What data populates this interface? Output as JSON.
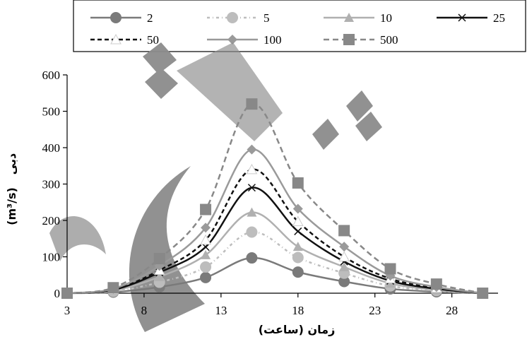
{
  "chart_data": {
    "type": "line",
    "xlabel": "زمان (ساعت)",
    "ylabel_main": "دبی",
    "ylabel_unit": "(m³/s)",
    "xlim": [
      3,
      31
    ],
    "ylim": [
      0,
      600
    ],
    "x_ticks": [
      "3",
      "8",
      "13",
      "18",
      "23",
      "28"
    ],
    "y_ticks": [
      "0",
      "100",
      "200",
      "300",
      "400",
      "500",
      "600"
    ],
    "grid": false,
    "legend_position": "top",
    "x": [
      3,
      6,
      9,
      12,
      15,
      18,
      21,
      24,
      27,
      30
    ],
    "series": [
      {
        "name": "2",
        "color": "#7a7a7a",
        "dash": "",
        "marker": "circle",
        "width": 2.5,
        "values": [
          0,
          3,
          17,
          43,
          97,
          58,
          32,
          12,
          4,
          0
        ]
      },
      {
        "name": "5",
        "color": "#bdbdbd",
        "dash": "4 4 1 4",
        "marker": "circle",
        "width": 2.5,
        "values": [
          0,
          5,
          30,
          72,
          168,
          98,
          55,
          20,
          7,
          0
        ]
      },
      {
        "name": "10",
        "color": "#b0b0b0",
        "dash": "",
        "marker": "triangle",
        "width": 2.5,
        "values": [
          0,
          7,
          45,
          105,
          222,
          128,
          72,
          27,
          9,
          0
        ]
      },
      {
        "name": "25",
        "color": "#111111",
        "dash": "",
        "marker": "cross",
        "width": 2.5,
        "values": [
          0,
          9,
          57,
          127,
          290,
          170,
          87,
          34,
          12,
          0
        ]
      },
      {
        "name": "50",
        "color": "#111111",
        "dash": "6 4",
        "marker": "triangle",
        "width": 2.5,
        "values": [
          0,
          10,
          63,
          146,
          340,
          197,
          100,
          40,
          14,
          0
        ]
      },
      {
        "name": "100",
        "color": "#9a9a9a",
        "dash": "",
        "marker": "diamond",
        "width": 2.5,
        "values": [
          0,
          12,
          75,
          180,
          395,
          232,
          128,
          48,
          17,
          0
        ]
      },
      {
        "name": "500",
        "color": "#888888",
        "dash": "8 5",
        "marker": "square",
        "width": 2.5,
        "values": [
          0,
          15,
          95,
          230,
          520,
          303,
          172,
          67,
          25,
          0
        ]
      }
    ]
  }
}
